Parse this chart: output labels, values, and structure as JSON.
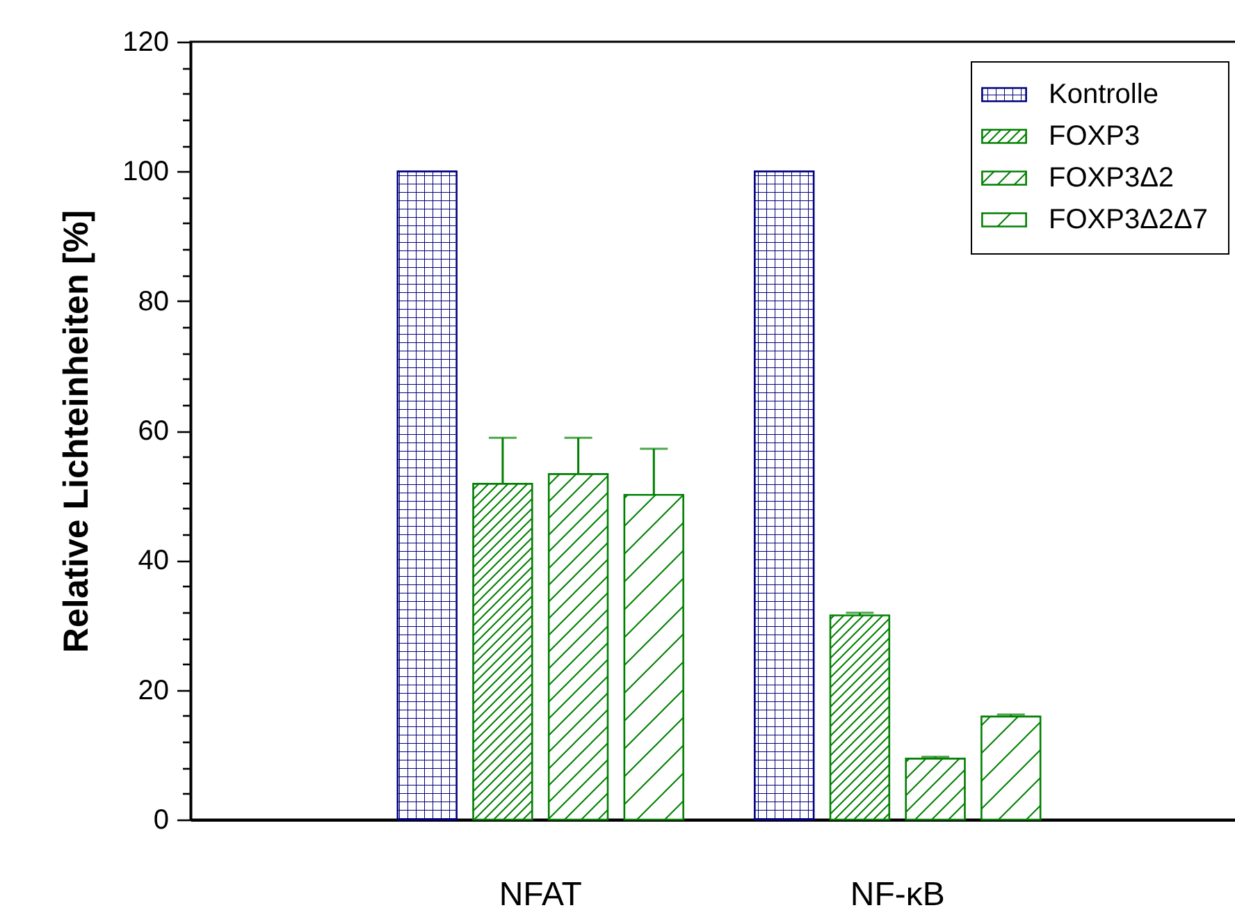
{
  "chart_data": {
    "type": "bar",
    "ylabel": "Relative Lichteinheiten [%]",
    "categories": [
      "NFAT",
      "NF-κB"
    ],
    "series": [
      {
        "name": "Kontrolle",
        "color": "#000080",
        "values": [
          100,
          100
        ]
      },
      {
        "name": "FOXP3",
        "color": "#008000",
        "values": [
          51.8,
          31.5
        ],
        "errors": [
          [
            51.8,
            58.9
          ],
          [
            31.5,
            31.9
          ]
        ]
      },
      {
        "name": "FOXP3Δ2",
        "color": "#008000",
        "values": [
          53.3,
          9.4
        ],
        "errors": [
          [
            53.3,
            58.9
          ],
          [
            9.4,
            9.7
          ]
        ]
      },
      {
        "name": "FOXP3Δ2Δ7",
        "color": "#008000",
        "values": [
          50.1,
          15.9
        ],
        "errors": [
          [
            50.1,
            57.2
          ],
          [
            15.9,
            16.2
          ]
        ]
      }
    ],
    "ylim": [
      0,
      120
    ],
    "yticks": [
      0,
      {
        "value": 4,
        "label": null
      },
      {
        "value": 8,
        "label": null
      },
      {
        "value": 12,
        "label": null
      },
      {
        "value": 16,
        "label": null
      },
      20,
      {
        "value": 24,
        "label": null
      },
      {
        "value": 28,
        "label": null
      },
      {
        "value": 32,
        "label": null
      },
      {
        "value": 36,
        "label": null
      },
      40,
      {
        "value": 44,
        "label": null
      },
      {
        "value": 48,
        "label": null
      },
      {
        "value": 52,
        "label": null
      },
      {
        "value": 56,
        "label": null
      },
      60,
      {
        "value": 64,
        "label": null
      },
      {
        "value": 68,
        "label": null
      },
      {
        "value": 72,
        "label": null
      },
      {
        "value": 76,
        "label": null
      },
      80,
      {
        "value": 84,
        "label": null
      },
      {
        "value": 88,
        "label": null
      },
      {
        "value": 92,
        "label": null
      },
      {
        "value": 96,
        "label": null
      },
      100,
      {
        "value": 104,
        "label": null
      },
      {
        "value": 108,
        "label": null
      },
      {
        "value": 112,
        "label": null
      },
      {
        "value": 116,
        "label": null
      },
      120
    ],
    "legend": "top right",
    "grid": false
  }
}
